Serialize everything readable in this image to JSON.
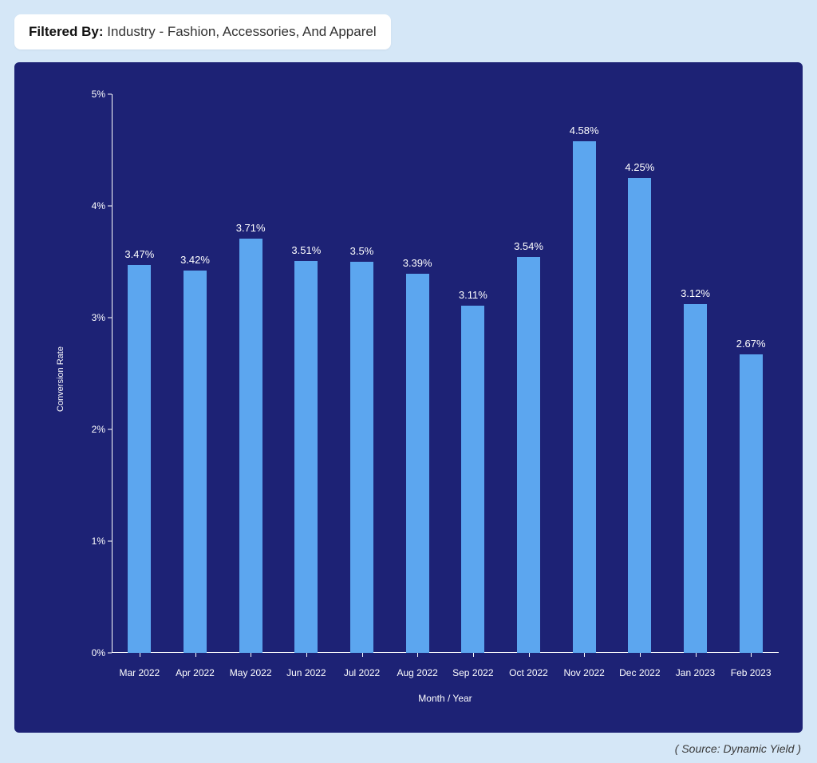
{
  "filter": {
    "label": "Filtered By:",
    "value": "Industry - Fashion, Accessories, And Apparel"
  },
  "chart": {
    "type": "bar",
    "background_color": "#1d2275",
    "page_background_color": "#d5e7f7",
    "bar_color": "#5ca6ef",
    "axis_color": "#ffffff",
    "text_color": "#ffffff",
    "bar_width_ratio": 0.42,
    "ylim": [
      0,
      5
    ],
    "ytick_step": 1,
    "ytick_suffix": "%",
    "ylabel": "Conversion Rate",
    "xlabel": "Month / Year",
    "ylabel_fontsize": 11,
    "xlabel_fontsize": 12,
    "tick_fontsize": 12,
    "bar_label_fontsize": 13,
    "categories": [
      "Mar 2022",
      "Apr 2022",
      "May 2022",
      "Jun 2022",
      "Jul 2022",
      "Aug 2022",
      "Sep 2022",
      "Oct 2022",
      "Nov 2022",
      "Dec 2022",
      "Jan 2023",
      "Feb 2023"
    ],
    "values": [
      3.47,
      3.42,
      3.71,
      3.51,
      3.5,
      3.39,
      3.11,
      3.54,
      4.58,
      4.25,
      3.12,
      2.67
    ],
    "value_labels": [
      "3.47%",
      "3.42%",
      "3.71%",
      "3.51%",
      "3.5%",
      "3.39%",
      "3.11%",
      "3.54%",
      "4.58%",
      "4.25%",
      "3.12%",
      "2.67%"
    ]
  },
  "source": {
    "text": "( Source: Dynamic Yield )"
  }
}
